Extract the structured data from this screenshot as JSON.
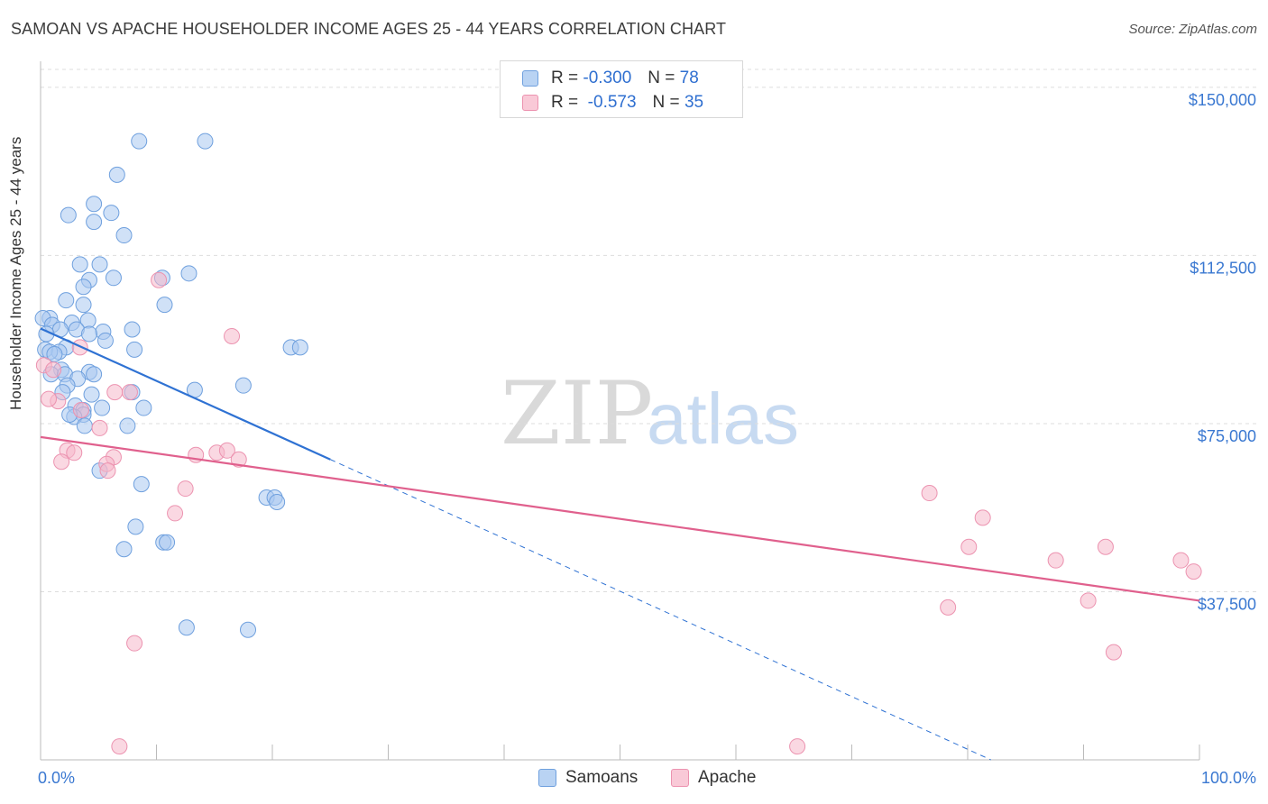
{
  "title": "SAMOAN VS APACHE HOUSEHOLDER INCOME AGES 25 - 44 YEARS CORRELATION CHART",
  "source": "Source: ZipAtlas.com",
  "watermark": {
    "zip": "ZIP",
    "atlas": "atlas"
  },
  "legend": {
    "r_label": "R =",
    "n_label": "N =",
    "rows": [
      {
        "r": "-0.300",
        "n": "78"
      },
      {
        "r": "-0.573",
        "n": "35"
      }
    ]
  },
  "colors": {
    "samoans_fill": "#a9c9f0",
    "samoans_stroke": "#6fa0de",
    "samoans_line": "#2f72d3",
    "apache_fill": "#f6b8cb",
    "apache_stroke": "#ec93b0",
    "apache_line": "#e0608d",
    "axis_text": "#3a78d1",
    "grid": "#dddddd"
  },
  "chart_data": {
    "type": "scatter",
    "xlabel": "",
    "ylabel": "Householder Income Ages 25 - 44 years",
    "x_tick_labels": [
      "0.0%",
      "100.0%"
    ],
    "y_ticks": [
      37500,
      75000,
      112500,
      150000
    ],
    "y_tick_labels": [
      "$37,500",
      "$75,000",
      "$112,500",
      "$150,000"
    ],
    "xlim": [
      0,
      100
    ],
    "ylim": [
      0,
      154000
    ],
    "grid": true,
    "legend_position": "top-center",
    "series": [
      {
        "name": "Samoans",
        "r": -0.3,
        "n": 78,
        "trend": {
          "x0": 0,
          "y0": 96200,
          "x1": 25,
          "y1": 67000,
          "dashed_to_x": 82,
          "dashed_to_y": 0
        },
        "points": [
          [
            8.5,
            138000
          ],
          [
            14.2,
            138000
          ],
          [
            6.6,
            130500
          ],
          [
            4.6,
            124000
          ],
          [
            6.1,
            122000
          ],
          [
            2.4,
            121500
          ],
          [
            4.6,
            120000
          ],
          [
            7.2,
            117000
          ],
          [
            3.4,
            110500
          ],
          [
            5.1,
            110500
          ],
          [
            6.3,
            107500
          ],
          [
            10.5,
            107500
          ],
          [
            12.8,
            108500
          ],
          [
            4.2,
            107000
          ],
          [
            3.7,
            105500
          ],
          [
            2.2,
            102500
          ],
          [
            3.7,
            101500
          ],
          [
            10.7,
            101500
          ],
          [
            0.8,
            98500
          ],
          [
            0.2,
            98500
          ],
          [
            2.7,
            97500
          ],
          [
            4.1,
            98000
          ],
          [
            1.0,
            97000
          ],
          [
            3.1,
            96000
          ],
          [
            1.7,
            96000
          ],
          [
            5.4,
            95500
          ],
          [
            7.9,
            96000
          ],
          [
            4.2,
            95000
          ],
          [
            0.5,
            95000
          ],
          [
            5.6,
            93500
          ],
          [
            2.2,
            92000
          ],
          [
            0.4,
            91500
          ],
          [
            1.6,
            91000
          ],
          [
            0.8,
            91000
          ],
          [
            8.1,
            91500
          ],
          [
            21.6,
            92000
          ],
          [
            22.4,
            92000
          ],
          [
            1.2,
            90500
          ],
          [
            1.8,
            87000
          ],
          [
            0.9,
            86000
          ],
          [
            2.1,
            86000
          ],
          [
            4.2,
            86500
          ],
          [
            4.6,
            86000
          ],
          [
            3.2,
            85000
          ],
          [
            2.3,
            83500
          ],
          [
            17.5,
            83500
          ],
          [
            13.3,
            82500
          ],
          [
            7.9,
            82000
          ],
          [
            1.9,
            82000
          ],
          [
            4.4,
            81500
          ],
          [
            3.0,
            79000
          ],
          [
            5.3,
            78500
          ],
          [
            8.9,
            78500
          ],
          [
            3.7,
            78000
          ],
          [
            3.7,
            77000
          ],
          [
            2.9,
            76500
          ],
          [
            2.5,
            77000
          ],
          [
            3.8,
            74500
          ],
          [
            7.5,
            74500
          ],
          [
            5.1,
            64500
          ],
          [
            8.7,
            61500
          ],
          [
            19.5,
            58500
          ],
          [
            20.2,
            58500
          ],
          [
            20.4,
            57500
          ],
          [
            8.2,
            52000
          ],
          [
            7.2,
            47000
          ],
          [
            10.6,
            48500
          ],
          [
            10.9,
            48500
          ],
          [
            12.6,
            29500
          ],
          [
            17.9,
            29000
          ]
        ]
      },
      {
        "name": "Apache",
        "r": -0.573,
        "n": 35,
        "trend": {
          "x0": 0,
          "y0": 72000,
          "x1": 100,
          "y1": 35500
        },
        "points": [
          [
            0.3,
            88000
          ],
          [
            1.1,
            87000
          ],
          [
            3.4,
            92000
          ],
          [
            1.5,
            80000
          ],
          [
            0.7,
            80500
          ],
          [
            6.4,
            82000
          ],
          [
            7.7,
            82000
          ],
          [
            3.5,
            78000
          ],
          [
            5.1,
            74000
          ],
          [
            2.3,
            69000
          ],
          [
            2.9,
            68500
          ],
          [
            6.3,
            67500
          ],
          [
            13.4,
            68000
          ],
          [
            15.2,
            68500
          ],
          [
            16.1,
            69000
          ],
          [
            17.1,
            67000
          ],
          [
            1.8,
            66500
          ],
          [
            5.7,
            66000
          ],
          [
            5.8,
            64500
          ],
          [
            12.5,
            60500
          ],
          [
            11.6,
            55000
          ],
          [
            10.2,
            107000
          ],
          [
            16.5,
            94500
          ],
          [
            76.7,
            59500
          ],
          [
            81.3,
            54000
          ],
          [
            80.1,
            47500
          ],
          [
            87.6,
            44500
          ],
          [
            91.9,
            47500
          ],
          [
            98.4,
            44500
          ],
          [
            99.5,
            42000
          ],
          [
            78.3,
            34000
          ],
          [
            90.4,
            35500
          ],
          [
            92.6,
            24000
          ],
          [
            8.1,
            26000
          ],
          [
            6.8,
            3000
          ],
          [
            65.3,
            3000
          ]
        ]
      }
    ]
  },
  "bottom_legend": [
    "Samoans",
    "Apache"
  ]
}
